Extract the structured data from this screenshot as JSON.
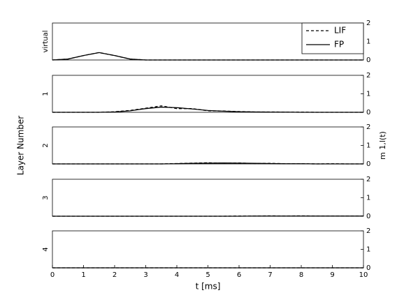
{
  "chart_data": [
    {
      "type": "line",
      "panel_label": "virtual",
      "ylabel": "Layer Number",
      "y2label": "m 1,l(t)",
      "legend": "top-right",
      "x": [
        0,
        0.5,
        1,
        1.5,
        2,
        2.5,
        3,
        3.5,
        4,
        4.5,
        5,
        5.5,
        6,
        6.5,
        7,
        7.5,
        8,
        8.5,
        9,
        9.5,
        10
      ],
      "xlim": [
        0,
        10
      ],
      "ylim": [
        0,
        2
      ],
      "yticks": [
        0,
        1,
        2
      ],
      "ytick_side": "right",
      "series": [
        {
          "name": "LIF",
          "color": "#000000",
          "linestyle": "dashed",
          "values": [
            0,
            0.05,
            0.24,
            0.4,
            0.24,
            0.05,
            0,
            0,
            0,
            0,
            0,
            0,
            0,
            0,
            0,
            0,
            0,
            0,
            0,
            0,
            0
          ]
        },
        {
          "name": "FP",
          "color": "#000000",
          "linestyle": "solid",
          "values": [
            0,
            0.05,
            0.24,
            0.4,
            0.24,
            0.05,
            0,
            0,
            0,
            0,
            0,
            0,
            0,
            0,
            0,
            0,
            0,
            0,
            0,
            0,
            0
          ]
        }
      ]
    },
    {
      "type": "line",
      "panel_label": "1",
      "x": [
        0,
        0.5,
        1,
        1.5,
        2,
        2.5,
        3,
        3.5,
        4,
        4.5,
        5,
        5.5,
        6,
        6.5,
        7,
        7.5,
        8,
        8.5,
        9,
        9.5,
        10
      ],
      "xlim": [
        0,
        10
      ],
      "ylim": [
        0,
        2
      ],
      "yticks": [
        0,
        1,
        2
      ],
      "ytick_side": "right",
      "series": [
        {
          "name": "LIF",
          "color": "#000000",
          "linestyle": "dashed",
          "values": [
            0,
            0,
            0,
            0,
            0.03,
            0.1,
            0.22,
            0.35,
            0.2,
            0.2,
            0.08,
            0.07,
            0.04,
            0.02,
            0.02,
            0.01,
            0.01,
            0,
            0,
            0,
            0
          ]
        },
        {
          "name": "FP",
          "color": "#000000",
          "linestyle": "solid",
          "values": [
            0,
            0,
            0,
            0,
            0.02,
            0.08,
            0.2,
            0.28,
            0.25,
            0.18,
            0.1,
            0.06,
            0.03,
            0.02,
            0.01,
            0.01,
            0,
            0,
            0,
            0,
            0
          ]
        }
      ]
    },
    {
      "type": "line",
      "panel_label": "2",
      "x": [
        0,
        0.5,
        1,
        1.5,
        2,
        2.5,
        3,
        3.5,
        4,
        4.5,
        5,
        5.5,
        6,
        6.5,
        7,
        7.5,
        8,
        8.5,
        9,
        9.5,
        10
      ],
      "xlim": [
        0,
        10
      ],
      "ylim": [
        0,
        2
      ],
      "yticks": [
        0,
        1,
        2
      ],
      "ytick_side": "right",
      "series": [
        {
          "name": "LIF",
          "color": "#000000",
          "linestyle": "dashed",
          "values": [
            0,
            0,
            0,
            0,
            0,
            0,
            0,
            0,
            0.02,
            0.04,
            0.06,
            0.04,
            0.05,
            0.02,
            0.03,
            0.01,
            0.01,
            0,
            0.01,
            0,
            0
          ]
        },
        {
          "name": "FP",
          "color": "#000000",
          "linestyle": "solid",
          "values": [
            0,
            0,
            0,
            0,
            0,
            0,
            0,
            0,
            0.01,
            0.03,
            0.04,
            0.05,
            0.04,
            0.03,
            0.02,
            0.01,
            0.01,
            0,
            0,
            0,
            0
          ]
        }
      ]
    },
    {
      "type": "line",
      "panel_label": "3",
      "x": [
        0,
        0.5,
        1,
        1.5,
        2,
        2.5,
        3,
        3.5,
        4,
        4.5,
        5,
        5.5,
        6,
        6.5,
        7,
        7.5,
        8,
        8.5,
        9,
        9.5,
        10
      ],
      "xlim": [
        0,
        10
      ],
      "ylim": [
        0,
        2
      ],
      "yticks": [
        0,
        1,
        2
      ],
      "ytick_side": "right",
      "series": [
        {
          "name": "LIF",
          "color": "#000000",
          "linestyle": "dashed",
          "values": [
            0,
            0,
            0,
            0,
            0,
            0,
            0,
            0,
            0,
            0,
            0,
            0,
            0.01,
            0.01,
            0.02,
            0.01,
            0.02,
            0.01,
            0.01,
            0.01,
            0.01
          ]
        },
        {
          "name": "FP",
          "color": "#000000",
          "linestyle": "solid",
          "values": [
            0,
            0,
            0,
            0,
            0,
            0,
            0,
            0,
            0,
            0,
            0,
            0,
            0,
            0.01,
            0.01,
            0.01,
            0.01,
            0.01,
            0.01,
            0.01,
            0.01
          ]
        }
      ]
    },
    {
      "type": "line",
      "panel_label": "4",
      "xlabel": "t [ms]",
      "x": [
        0,
        0.5,
        1,
        1.5,
        2,
        2.5,
        3,
        3.5,
        4,
        4.5,
        5,
        5.5,
        6,
        6.5,
        7,
        7.5,
        8,
        8.5,
        9,
        9.5,
        10
      ],
      "xlim": [
        0,
        10
      ],
      "xticks": [
        0,
        1,
        2,
        3,
        4,
        5,
        6,
        7,
        8,
        9,
        10
      ],
      "ylim": [
        0,
        2
      ],
      "yticks": [
        0,
        1,
        2
      ],
      "ytick_side": "right",
      "series": [
        {
          "name": "LIF",
          "color": "#000000",
          "linestyle": "dashed",
          "values": [
            0,
            0,
            0,
            0,
            0,
            0,
            0,
            0,
            0,
            0,
            0,
            0,
            0,
            0,
            0,
            0,
            0,
            0,
            0,
            0,
            0
          ]
        },
        {
          "name": "FP",
          "color": "#000000",
          "linestyle": "solid",
          "values": [
            0,
            0,
            0,
            0,
            0,
            0,
            0,
            0,
            0,
            0,
            0,
            0,
            0,
            0,
            0,
            0,
            0,
            0,
            0,
            0,
            0
          ]
        }
      ]
    }
  ]
}
